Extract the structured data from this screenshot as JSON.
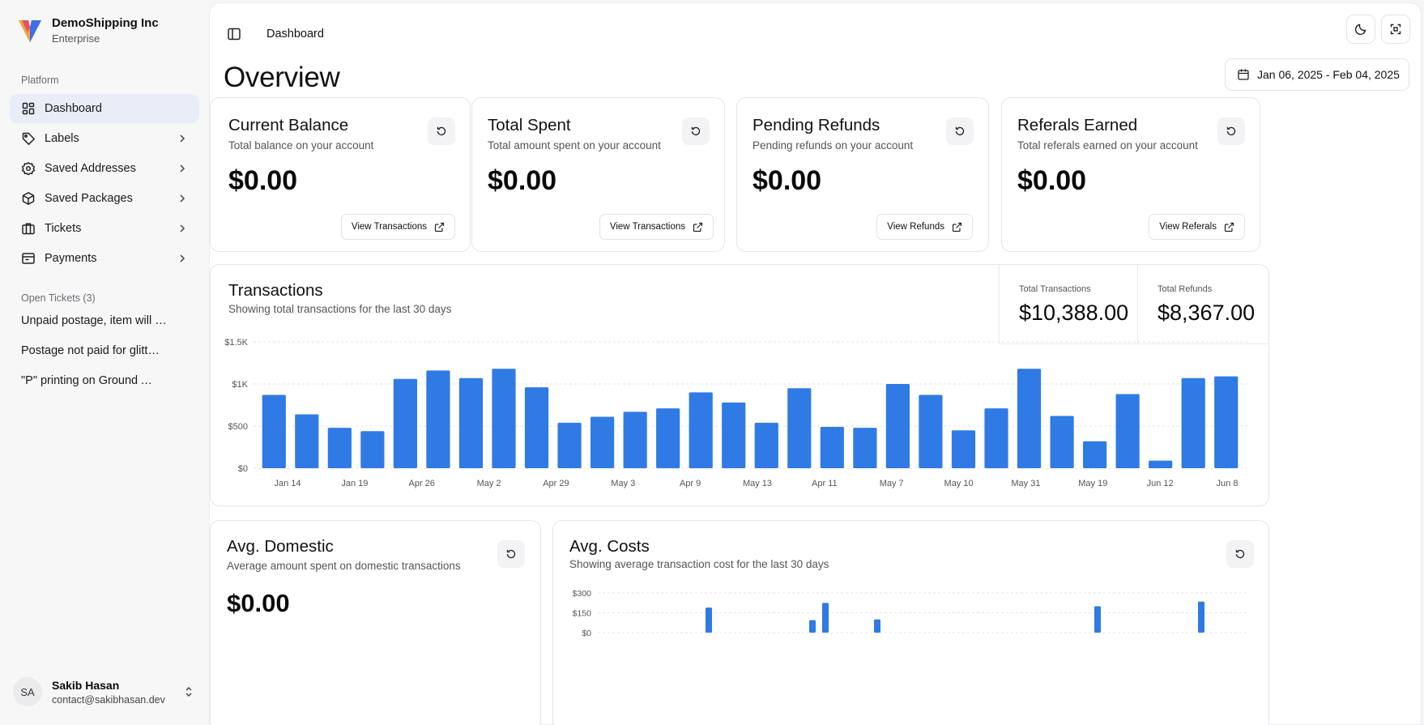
{
  "brand": {
    "name": "DemoShipping Inc",
    "plan": "Enterprise"
  },
  "sidebar": {
    "platform_label": "Platform",
    "items": [
      {
        "label": "Dashboard",
        "icon": "dashboard-icon",
        "active": true
      },
      {
        "label": "Labels",
        "icon": "tag-icon"
      },
      {
        "label": "Saved Addresses",
        "icon": "address-icon"
      },
      {
        "label": "Saved Packages",
        "icon": "package-icon"
      },
      {
        "label": "Tickets",
        "icon": "briefcase-icon"
      },
      {
        "label": "Payments",
        "icon": "wallet-icon"
      }
    ],
    "open_tickets_label": "Open Tickets (3)",
    "tickets": [
      "Unpaid postage, item will not be delivered",
      "Postage not paid for glitter shipment",
      "\"P\" printing on Ground Advantage label"
    ]
  },
  "user": {
    "initials": "SA",
    "name": "Sakib Hasan",
    "email": "contact@sakibhasan.dev"
  },
  "header": {
    "title": "Dashboard"
  },
  "page": {
    "title": "Overview",
    "date_range": "Jan 06, 2025 - Feb 04, 2025"
  },
  "cards": [
    {
      "title": "Current Balance",
      "subtitle": "Total balance on your account",
      "value": "$0.00",
      "action": "View Transactions"
    },
    {
      "title": "Total Spent",
      "subtitle": "Total amount spent on your account",
      "value": "$0.00",
      "action": "View Transactions"
    },
    {
      "title": "Pending Refunds",
      "subtitle": "Pending refunds on your account",
      "value": "$0.00",
      "action": "View Refunds"
    },
    {
      "title": "Referals Earned",
      "subtitle": "Total referals earned on your account",
      "value": "$0.00",
      "action": "View Referals"
    }
  ],
  "transactions": {
    "title": "Transactions",
    "subtitle": "Showing total transactions for the last 30 days",
    "total_transactions_label": "Total Transactions",
    "total_transactions_value": "$10,388.00",
    "total_refunds_label": "Total Refunds",
    "total_refunds_value": "$8,367.00"
  },
  "avg_domestic": {
    "title": "Avg. Domestic",
    "subtitle": "Average amount spent on domestic transactions",
    "value": "$0.00"
  },
  "avg_costs": {
    "title": "Avg. Costs",
    "subtitle": "Showing average transaction cost for the last 30 days"
  },
  "colors": {
    "accent": "#2f7ae5",
    "active_nav_bg": "#e8edf7"
  },
  "chart_data": [
    {
      "type": "bar",
      "y_ticks": [
        "$0",
        "$500",
        "$1K",
        "$1.5K"
      ],
      "ylim": [
        0,
        1500
      ],
      "x_tick_labels": [
        "Jan 14",
        "Jan 19",
        "Apr 26",
        "May 2",
        "Apr 29",
        "May 3",
        "Apr 9",
        "May 13",
        "Apr 11",
        "May 7",
        "May 10",
        "May 31",
        "May 19",
        "Jun 12",
        "Jun 8"
      ],
      "values": [
        870,
        640,
        480,
        440,
        1060,
        1160,
        1070,
        1180,
        960,
        540,
        610,
        670,
        710,
        900,
        780,
        540,
        950,
        490,
        480,
        1000,
        870,
        450,
        710,
        1180,
        620,
        320,
        880,
        90,
        1070,
        1090
      ],
      "grid": true,
      "color": "#2f7ae5"
    },
    {
      "type": "bar",
      "y_ticks": [
        "$0",
        "$150",
        "$300"
      ],
      "ylim": [
        0,
        300
      ],
      "values": [
        0,
        0,
        0,
        0,
        0,
        0,
        0,
        0,
        190,
        0,
        0,
        0,
        0,
        0,
        0,
        0,
        95,
        225,
        0,
        0,
        0,
        100,
        0,
        0,
        0,
        0,
        0,
        0,
        0,
        0,
        0,
        0,
        0,
        0,
        0,
        0,
        0,
        0,
        200,
        0,
        0,
        0,
        0,
        0,
        0,
        0,
        235,
        0,
        0,
        0
      ],
      "grid": true,
      "color": "#2f7ae5"
    }
  ]
}
